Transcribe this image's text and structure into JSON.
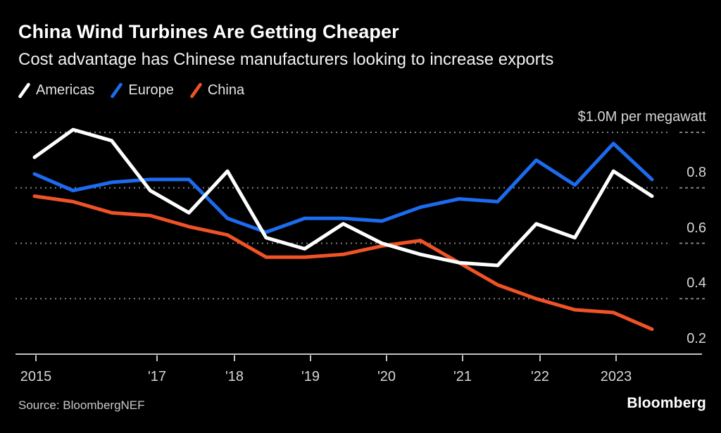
{
  "header": {
    "title": "China Wind Turbines Are Getting Cheaper",
    "subtitle": "Cost advantage has Chinese manufacturers looking to increase exports"
  },
  "legend": [
    {
      "label": "Americas",
      "color": "#ffffff"
    },
    {
      "label": "Europe",
      "color": "#1c6bf0"
    },
    {
      "label": "China",
      "color": "#ef5327"
    }
  ],
  "theme": {
    "background": "#000000",
    "gridline_color": "#808080",
    "axis_color": "#c2c2c2",
    "label_color": "#d6d6d6"
  },
  "chart_data": {
    "type": "line",
    "title": "China Wind Turbines Are Getting Cheaper",
    "subtitle": "Cost advantage has Chinese manufacturers looking to increase exports",
    "unit_label": "$1.0M per megawatt",
    "ylabel": "$M per megawatt",
    "xlabel": "",
    "grid": "dotted horizontal gridlines, solid baseline",
    "legend_position": "top-left",
    "x": [
      2015.5,
      2016.0,
      2016.5,
      2017.0,
      2017.5,
      2018.0,
      2018.5,
      2019.0,
      2019.5,
      2020.0,
      2020.5,
      2021.0,
      2021.5,
      2022.0,
      2022.5,
      2023.0,
      2023.5
    ],
    "series": [
      {
        "name": "Americas",
        "color": "#ffffff",
        "values": [
          0.91,
          1.01,
          0.97,
          0.79,
          0.71,
          0.86,
          0.62,
          0.58,
          0.67,
          0.6,
          0.56,
          0.53,
          0.52,
          0.67,
          0.62,
          0.86,
          0.77
        ]
      },
      {
        "name": "Europe",
        "color": "#1c6bf0",
        "values": [
          0.85,
          0.79,
          0.82,
          0.83,
          0.83,
          0.69,
          0.64,
          0.69,
          0.69,
          0.68,
          0.73,
          0.76,
          0.75,
          0.9,
          0.81,
          0.96,
          0.83
        ]
      },
      {
        "name": "China",
        "color": "#ef5327",
        "values": [
          0.77,
          0.75,
          0.71,
          0.7,
          0.66,
          0.63,
          0.55,
          0.55,
          0.56,
          0.59,
          0.61,
          0.53,
          0.45,
          0.4,
          0.36,
          0.35,
          0.29
        ]
      }
    ],
    "x_tick_labels": [
      "2015",
      "'17",
      "'18",
      "'19",
      "'20",
      "'21",
      "'22",
      "2023"
    ],
    "y_axis": {
      "labels": [
        "0.8",
        "0.6",
        "0.4",
        "0.2"
      ],
      "values": [
        0.8,
        0.6,
        0.4,
        0.2
      ],
      "gridline_values": [
        1.0,
        0.8,
        0.6,
        0.4
      ],
      "baseline_value": 0.2,
      "range": [
        0.2,
        1.0
      ]
    }
  },
  "footer": {
    "source": "Source: BloombergNEF",
    "brand": "Bloomberg"
  }
}
